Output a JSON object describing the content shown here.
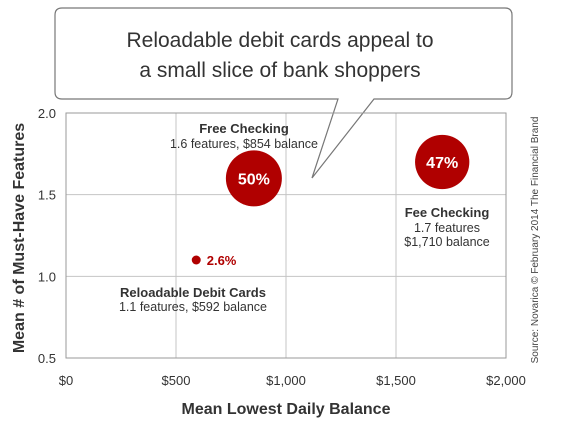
{
  "chart_data": {
    "type": "scatter",
    "title": "Reloadable debit cards appeal to a small slice of bank shoppers",
    "title_lines": [
      "Reloadable debit cards appeal to",
      "a small slice of bank shoppers"
    ],
    "xlabel": "Mean Lowest Daily Balance",
    "ylabel": "Mean # of Must-Have Features",
    "xlim": [
      0,
      2000
    ],
    "ylim": [
      0.5,
      2.0
    ],
    "x_ticks": [
      0,
      500,
      1000,
      1500,
      2000
    ],
    "x_tick_labels": [
      "$0",
      "$500",
      "$1,000",
      "$1,500",
      "$2,000"
    ],
    "y_ticks": [
      0.5,
      1.0,
      1.5,
      2.0
    ],
    "y_tick_labels": [
      "0.5",
      "1.0",
      "1.5",
      "2.0"
    ],
    "grid": true,
    "bubble_color": "#b00000",
    "points": [
      {
        "name": "Free Checking",
        "x": 854,
        "y": 1.6,
        "share_label": "50%",
        "detail": "1.6 features, $854 balance"
      },
      {
        "name": "Fee Checking",
        "x": 1710,
        "y": 1.7,
        "share_label": "47%",
        "detail_lines": [
          "1.7 features",
          "$1,710 balance"
        ]
      },
      {
        "name": "Reloadable Debit Cards",
        "x": 592,
        "y": 1.1,
        "share_label": "2.6%",
        "detail": "1.1 features, $592 balance"
      }
    ],
    "source": "Source: Novarica © February 2014 The Financial Brand"
  }
}
